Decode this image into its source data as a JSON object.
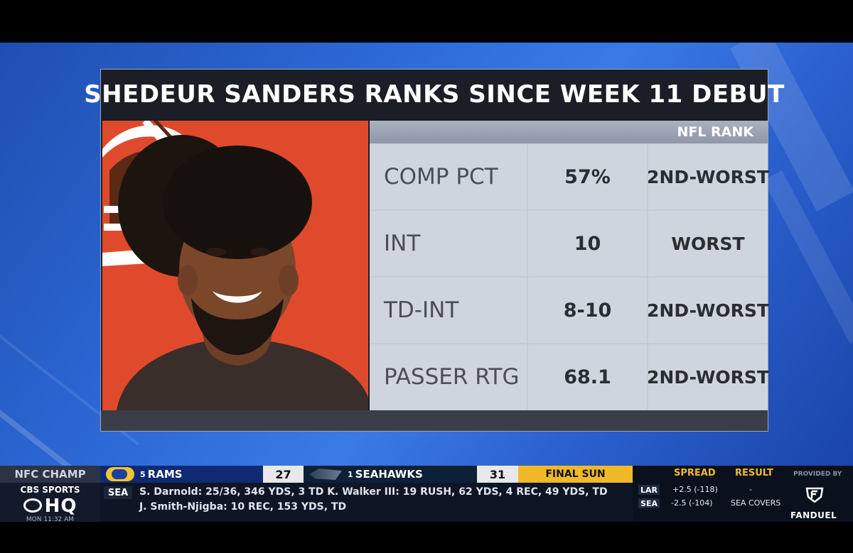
{
  "graphic": {
    "title": "SHEDEUR SANDERS RANKS SINCE WEEK 11 DEBUT",
    "rank_header": "NFL RANK",
    "rows": [
      {
        "label": "COMP PCT",
        "value": "57%",
        "rank": "2ND-WORST"
      },
      {
        "label": "INT",
        "value": "10",
        "rank": "WORST"
      },
      {
        "label": "TD-INT",
        "value": "8-10",
        "rank": "2ND-WORST"
      },
      {
        "label": "PASSER RTG",
        "value": "68.1",
        "rank": "2ND-WORST"
      }
    ]
  },
  "ticker": {
    "game_label": "NFC CHAMP",
    "team_a": {
      "seed": "5",
      "name": "RAMS",
      "score": "27"
    },
    "team_b": {
      "seed": "1",
      "name": "SEAHAWKS",
      "score": "31"
    },
    "status": "FINAL SUN",
    "network_line1": "CBS SPORTS",
    "network_line2": "HQ",
    "network_time": "MON 11:32 AM",
    "stats_team": "SEA",
    "stats_line1": "S. Darnold: 25/36, 346 YDS, 3 TD   K. Walker III: 19 RUSH, 62 YDS, 4 REC, 49 YDS, TD",
    "stats_line2": "J. Smith-Njigba: 10 REC, 153 YDS, TD"
  },
  "odds": {
    "spread_label": "SPREAD",
    "result_label": "RESULT",
    "provided_by": "PROVIDED BY",
    "rows": [
      {
        "team": "LAR",
        "spread": "+2.5 (-118)",
        "result": "-"
      },
      {
        "team": "SEA",
        "spread": "-2.5 (-104)",
        "result": "SEA COVERS"
      }
    ],
    "sponsor": "FANDUEL"
  },
  "colors": {
    "background_blue": "#2d6ad8",
    "panel_dark": "#1b1e26",
    "browns_orange": "#e04a2c",
    "ticker_gold": "#f0b92a",
    "rams_blue": "#0f2a73"
  }
}
